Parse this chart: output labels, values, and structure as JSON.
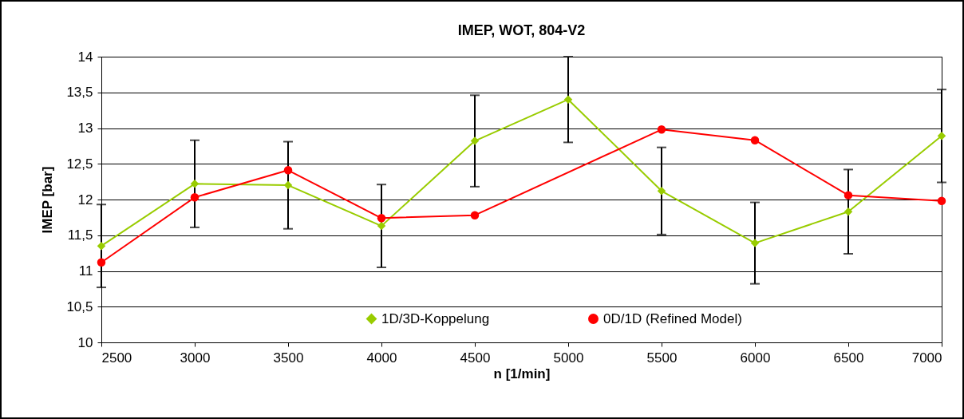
{
  "chart_data": {
    "type": "line",
    "title": "IMEP, WOT, 804-V2",
    "xlabel": "n [1/min]",
    "ylabel": "IMEP [bar]",
    "x": [
      2500,
      3000,
      3500,
      4000,
      4500,
      5000,
      5500,
      6000,
      6500,
      7000
    ],
    "series": [
      {
        "name": "1D/3D-Koppelung",
        "color": "#99cc00",
        "marker": "diamond",
        "values": [
          11.35,
          12.22,
          12.2,
          11.63,
          12.82,
          13.4,
          12.12,
          11.39,
          11.83,
          12.89
        ],
        "errors": [
          0.58,
          0.61,
          0.61,
          0.58,
          0.64,
          0.6,
          0.61,
          0.57,
          0.59,
          0.65
        ]
      },
      {
        "name": "0D/1D (Refined Model)",
        "color": "#ff0000",
        "marker": "circle",
        "x": [
          2500,
          3000,
          3500,
          4000,
          4500,
          5500,
          6000,
          6500,
          7000
        ],
        "values": [
          11.12,
          12.03,
          12.41,
          11.74,
          11.78,
          12.98,
          12.83,
          12.06,
          11.98
        ]
      }
    ],
    "xlim": [
      2500,
      7000
    ],
    "xticks": [
      2500,
      3000,
      3500,
      4000,
      4500,
      5000,
      5500,
      6000,
      6500,
      7000
    ],
    "ylim": [
      10,
      14
    ],
    "yticks": [
      10,
      {
        "value": 10.5,
        "label": "10,5"
      },
      11,
      {
        "value": 11.5,
        "label": "11,5"
      },
      12,
      {
        "value": 12.5,
        "label": "12,5"
      },
      13,
      {
        "value": 13.5,
        "label": "13,5"
      },
      14
    ],
    "grid": "y",
    "legend": "bottom"
  }
}
